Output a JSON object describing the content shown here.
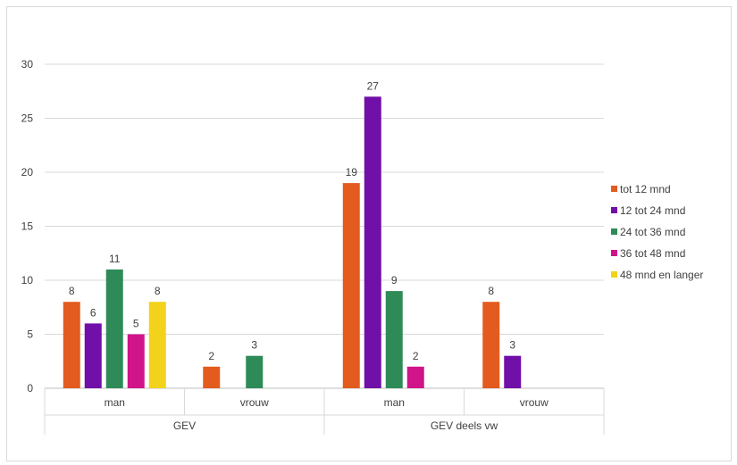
{
  "chart_data": {
    "type": "bar",
    "ylim": [
      0,
      30
    ],
    "yticks": [
      0,
      5,
      10,
      15,
      20,
      25,
      30
    ],
    "grid": true,
    "legend_position": "right",
    "groups": [
      {
        "label": "GEV",
        "categories": [
          "man",
          "vrouw"
        ]
      },
      {
        "label": "GEV deels vw",
        "categories": [
          "man",
          "vrouw"
        ]
      }
    ],
    "categories": [
      "man",
      "vrouw",
      "man",
      "vrouw"
    ],
    "series": [
      {
        "name": "tot 12 mnd",
        "color": "#e35b1f",
        "values": [
          8,
          2,
          19,
          8
        ]
      },
      {
        "name": "12 tot 24 mnd",
        "color": "#7010a8",
        "values": [
          6,
          null,
          27,
          3
        ]
      },
      {
        "name": "24 tot 36 mnd",
        "color": "#2e8b57",
        "values": [
          11,
          3,
          9,
          null
        ]
      },
      {
        "name": "36 tot 48 mnd",
        "color": "#d0148a",
        "values": [
          5,
          null,
          2,
          null
        ]
      },
      {
        "name": "48 mnd en langer",
        "color": "#f2d21b",
        "values": [
          8,
          null,
          null,
          null
        ]
      }
    ]
  }
}
